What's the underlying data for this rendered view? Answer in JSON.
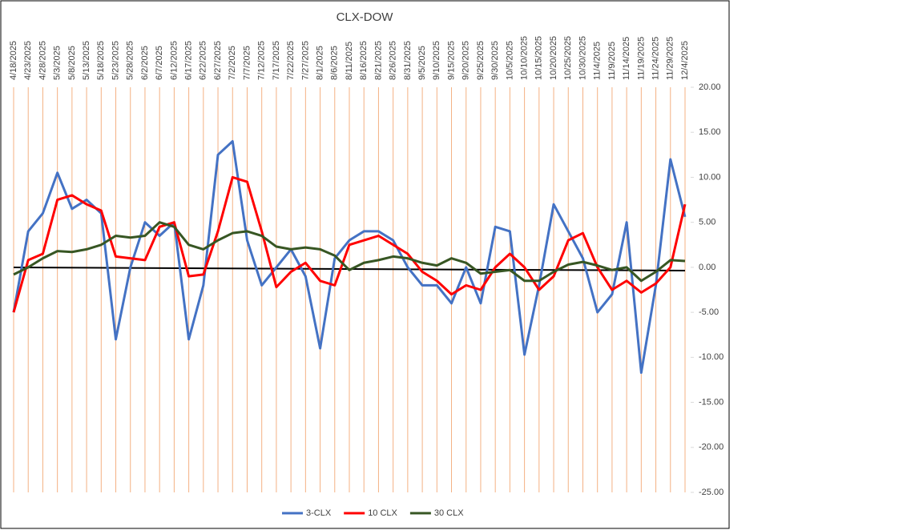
{
  "chart_data": {
    "type": "line",
    "title": "CLX-DOW",
    "categories": [
      "4/18/2025",
      "4/23/2025",
      "4/28/2025",
      "5/3/2025",
      "5/8/2025",
      "5/13/2025",
      "5/18/2025",
      "5/23/2025",
      "5/28/2025",
      "6/2/2025",
      "6/7/2025",
      "6/12/2025",
      "6/17/2025",
      "6/22/2025",
      "6/27/2025",
      "7/2/2025",
      "7/7/2025",
      "7/12/2025",
      "7/17/2025",
      "7/22/2025",
      "7/27/2025",
      "8/1/2025",
      "8/6/2025",
      "8/11/2025",
      "8/16/2025",
      "8/21/2025",
      "8/26/2025",
      "8/31/2025",
      "9/5/2025",
      "9/10/2025",
      "9/15/2025",
      "9/20/2025",
      "9/25/2025",
      "9/30/2025",
      "10/5/2025",
      "10/10/2025",
      "10/15/2025",
      "10/20/2025",
      "10/25/2025",
      "10/30/2025",
      "11/4/2025",
      "11/9/2025",
      "11/14/2025",
      "11/19/2025",
      "11/24/2025",
      "11/29/2025",
      "12/4/2025"
    ],
    "series": [
      {
        "name": "3-CLX",
        "color": "#4472c4",
        "values": [
          -5,
          4,
          6,
          10.5,
          6.5,
          7.5,
          6,
          -8,
          0,
          5,
          3.5,
          5,
          -8,
          -2,
          12.5,
          14,
          3,
          -2,
          0,
          2,
          -1,
          -9,
          1,
          3,
          4,
          4,
          3,
          0,
          -2,
          -2,
          -4,
          0,
          -4,
          4.5,
          4,
          -9.7,
          -2,
          7,
          4,
          1,
          -5,
          -3,
          5,
          -11.7,
          -2,
          12,
          5.6
        ]
      },
      {
        "name": "10 CLX",
        "color": "#ff0000",
        "values": [
          -5,
          0.8,
          1.5,
          7.5,
          8,
          7,
          6.3,
          1.2,
          1,
          0.8,
          4.5,
          5,
          -1,
          -0.8,
          4,
          10,
          9.5,
          4,
          -2.2,
          -0.5,
          0.5,
          -1.5,
          -2,
          2.5,
          3,
          3.5,
          2.5,
          1.5,
          -0.5,
          -1.5,
          -3,
          -2,
          -2.5,
          0,
          1.5,
          0,
          -2.5,
          -1,
          3,
          3.8,
          0,
          -2.5,
          -1.5,
          -2.8,
          -1.8,
          0,
          7
        ]
      },
      {
        "name": "30 CLX",
        "color": "#375623",
        "values": [
          -0.8,
          0,
          1,
          1.8,
          1.7,
          2,
          2.5,
          3.5,
          3.3,
          3.5,
          5,
          4.5,
          2.5,
          2,
          3,
          3.8,
          4,
          3.5,
          2.3,
          2,
          2.2,
          2,
          1.3,
          -0.3,
          0.5,
          0.8,
          1.2,
          1,
          0.5,
          0.2,
          1,
          0.5,
          -0.7,
          -0.5,
          -0.3,
          -1.5,
          -1.5,
          -0.5,
          0.3,
          0.6,
          0.2,
          -0.3,
          0,
          -1.5,
          -0.5,
          0.8,
          0.7
        ]
      }
    ],
    "ylim": [
      -25,
      20
    ],
    "yticks": [
      {
        "value": -25,
        "label": "-25.00"
      },
      {
        "value": -20,
        "label": "-20.00"
      },
      {
        "value": -15,
        "label": "-15.00"
      },
      {
        "value": -10,
        "label": "-10.00"
      },
      {
        "value": -5,
        "label": "-5.00"
      },
      {
        "value": 0,
        "label": "0.00"
      },
      {
        "value": 5,
        "label": "5.00"
      },
      {
        "value": 10,
        "label": "10.00"
      },
      {
        "value": 15,
        "label": "15.00"
      },
      {
        "value": 20,
        "label": "20.00"
      }
    ],
    "grid_color": "#f4b183"
  }
}
